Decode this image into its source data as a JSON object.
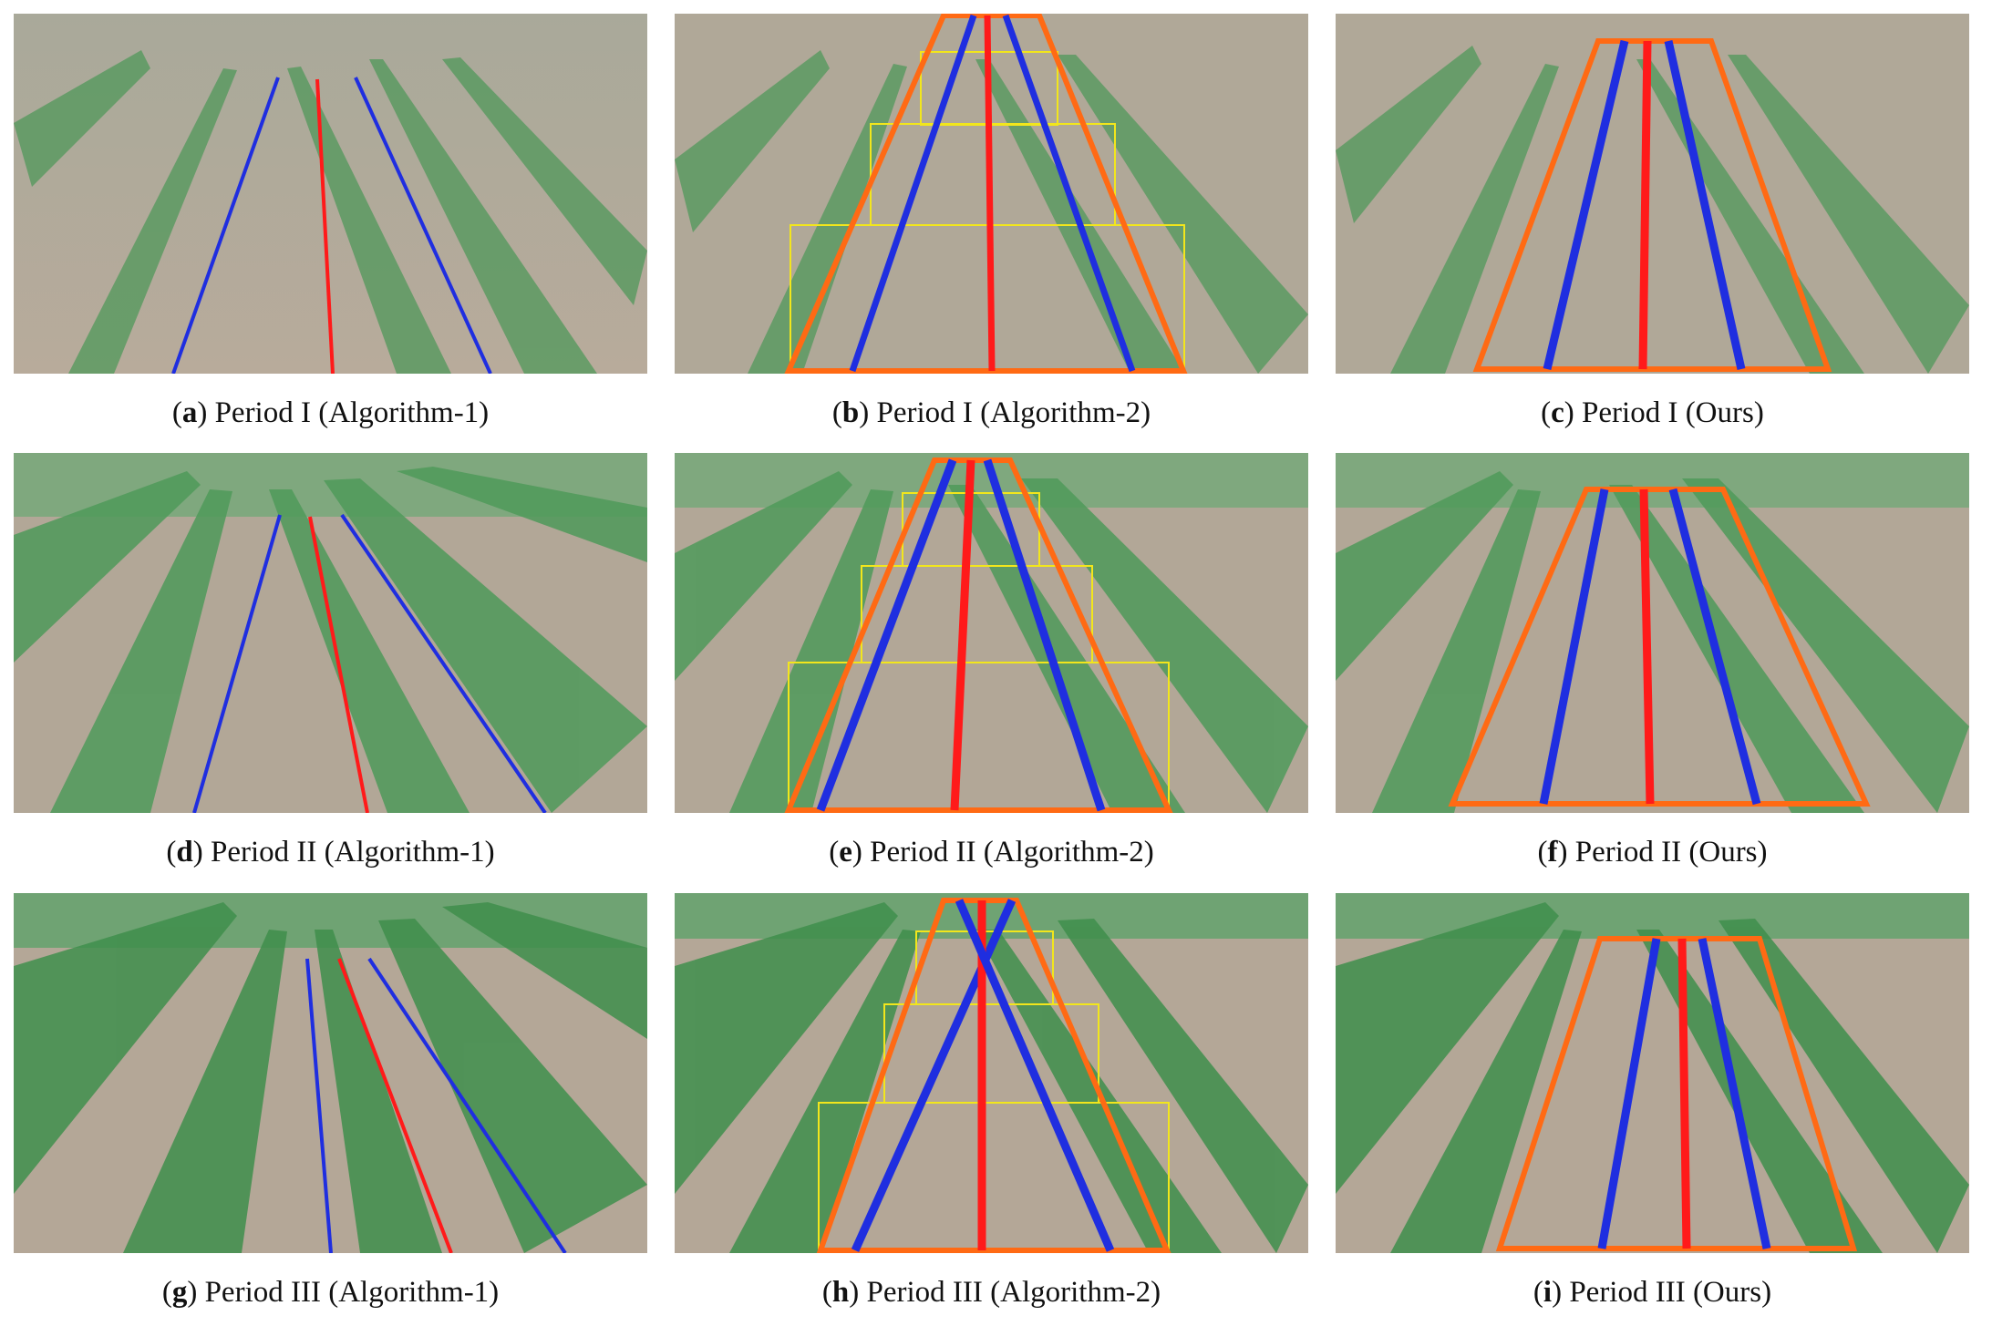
{
  "colors": {
    "soil_light": "#b7ada0",
    "soil_dark": "#8c8273",
    "crop": "#4f9a5a",
    "crop_dark": "#2f6e3b",
    "sky_haze": "#c9d6cc",
    "line_side": "#1f2ee0",
    "line_center": "#ff1a1a",
    "roi_trapezoid": "#ff6a14",
    "roi_box": "#f2e61c"
  },
  "panels": [
    {
      "letter": "a",
      "label": " Period I (Algorithm-1)",
      "period": 1,
      "method": "algorithm-1"
    },
    {
      "letter": "b",
      "label": " Period I (Algorithm-2)",
      "period": 1,
      "method": "algorithm-2"
    },
    {
      "letter": "c",
      "label": " Period I (Ours)",
      "period": 1,
      "method": "ours"
    },
    {
      "letter": "d",
      "label": " Period II (Algorithm-1)",
      "period": 2,
      "method": "algorithm-1"
    },
    {
      "letter": "e",
      "label": " Period II (Algorithm-2)",
      "period": 2,
      "method": "algorithm-2"
    },
    {
      "letter": "f",
      "label": " Period II (Ours)",
      "period": 2,
      "method": "ours"
    },
    {
      "letter": "g",
      "label": " Period III (Algorithm-1)",
      "period": 3,
      "method": "algorithm-1"
    },
    {
      "letter": "h",
      "label": " Period III (Algorithm-2)",
      "period": 3,
      "method": "algorithm-2"
    },
    {
      "letter": "i",
      "label": " Period III (Ours)",
      "period": 3,
      "method": "ours"
    }
  ]
}
